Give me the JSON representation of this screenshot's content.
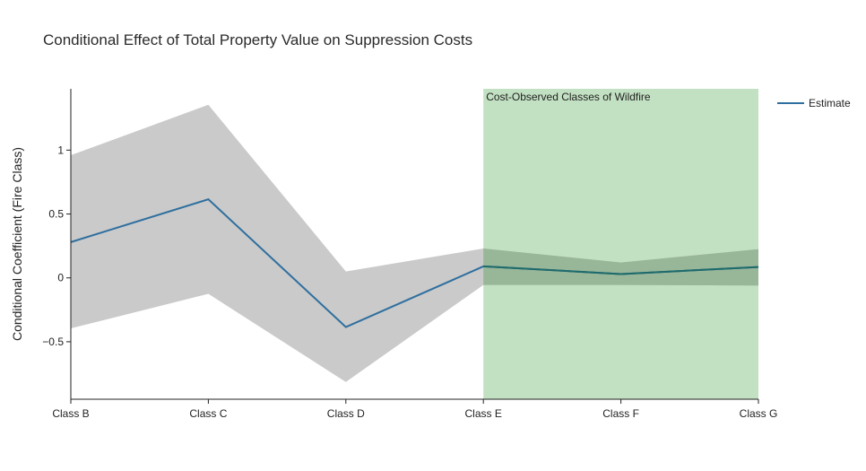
{
  "chart_data": {
    "type": "line",
    "title": "Conditional Effect of Total Property Value on Suppression Costs",
    "xlabel": "",
    "ylabel": "Conditional Coefficient (Fire Class)",
    "categories": [
      "Class B",
      "Class C",
      "Class D",
      "Class E",
      "Class F",
      "Class G"
    ],
    "series": [
      {
        "name": "Estimate",
        "values": [
          0.28,
          0.615,
          -0.385,
          0.09,
          0.03,
          0.085
        ],
        "color": "#2f6f9f"
      }
    ],
    "confidence_band": {
      "upper": [
        0.96,
        1.355,
        0.05,
        0.23,
        0.12,
        0.225
      ],
      "lower": [
        -0.395,
        -0.125,
        -0.815,
        -0.055,
        -0.055,
        -0.06
      ],
      "color": "#c6c6c6"
    },
    "highlight": {
      "label": "Cost-Observed Classes of Wildfire",
      "from_category": "Class E",
      "to_category": "Class G",
      "color": "#c2e0c2"
    },
    "yticks": [
      -0.5,
      0,
      0.5,
      1
    ],
    "ytick_labels": [
      "−0.5",
      "0",
      "0.5",
      "1"
    ],
    "ylim": [
      -0.95,
      1.48
    ],
    "legend": {
      "entries": [
        "Estimate"
      ],
      "position": "top-right"
    },
    "grid": false
  }
}
